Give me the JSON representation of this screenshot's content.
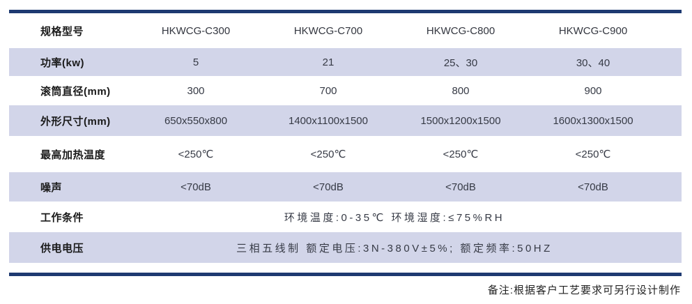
{
  "theme": {
    "rule_color": "#1e3a71",
    "stripe_color": "#d2d5e9"
  },
  "table": {
    "header": {
      "label": "规格型号",
      "models": [
        "HKWCG-C300",
        "HKWCG-C700",
        "HKWCG-C800",
        "HKWCG-C900"
      ]
    },
    "rows": [
      {
        "label": "功率(kw)",
        "values": [
          "5",
          "21",
          "25、30",
          "30、40"
        ]
      },
      {
        "label": "滚筒直径(mm)",
        "values": [
          "300",
          "700",
          "800",
          "900"
        ]
      },
      {
        "label": "外形尺寸(mm)",
        "values": [
          "650x550x800",
          "1400x1100x1500",
          "1500x1200x1500",
          "1600x1300x1500"
        ]
      },
      {
        "label": "最高加热温度",
        "values": [
          "<250℃",
          "<250℃",
          "<250℃",
          "<250℃"
        ]
      },
      {
        "label": "噪声",
        "values": [
          "<70dB",
          "<70dB",
          "<70dB",
          "<70dB"
        ]
      }
    ],
    "span_rows": [
      {
        "label": "工作条件",
        "value": "环境温度:0-35℃ 环境湿度:≤75%RH"
      },
      {
        "label": "供电电压",
        "value": "三相五线制 额定电压:3N-380V±5%; 额定频率:50HZ"
      }
    ]
  },
  "footer": {
    "note": "备注:根据客户工艺要求可另行设计制作"
  }
}
